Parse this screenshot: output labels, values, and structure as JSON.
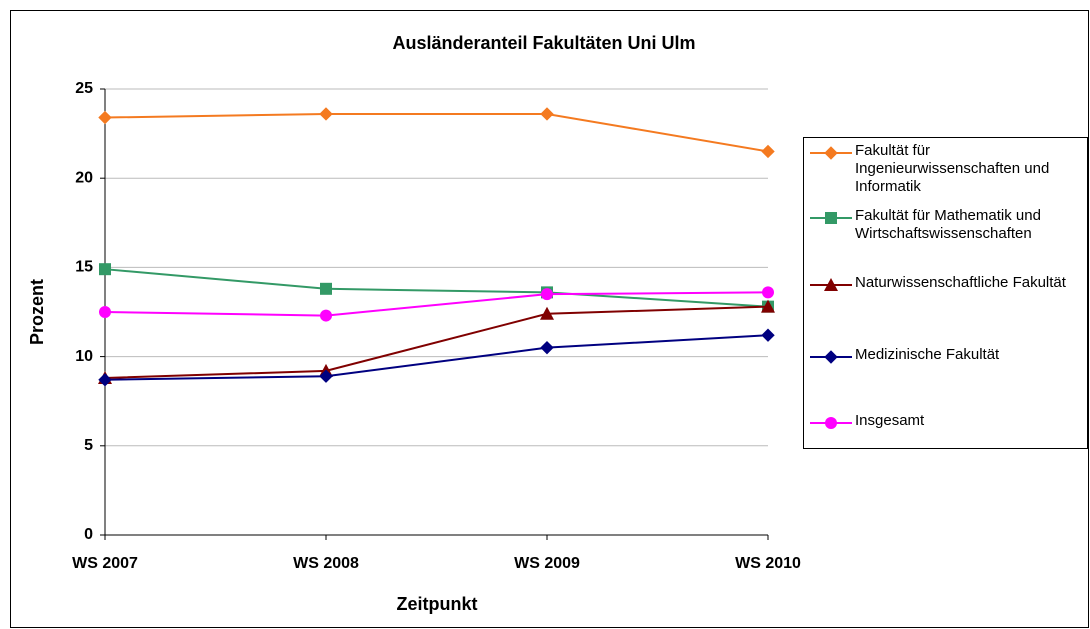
{
  "chart_data": {
    "type": "line",
    "title": "Ausländeranteil Fakultäten Uni Ulm",
    "x_label": "Zeitpunkt",
    "y_label": "Prozent",
    "categories": [
      "WS 2007",
      "WS 2008",
      "WS 2009",
      "WS 2010"
    ],
    "ylim": [
      0,
      25
    ],
    "yticks": [
      0,
      5,
      10,
      15,
      20,
      25
    ],
    "grid": true,
    "legend": "right",
    "series": [
      {
        "name": "Fakultät für Ingenieurwissenschaften und Informatik",
        "color": "#f47a20",
        "marker": "diamond",
        "values": [
          23.4,
          23.6,
          23.6,
          21.5
        ]
      },
      {
        "name": "Fakultät für Mathematik und Wirtschaftswissenschaften",
        "color": "#339966",
        "marker": "square",
        "values": [
          14.9,
          13.8,
          13.6,
          12.8
        ]
      },
      {
        "name": "Naturwissenschaftliche Fakultät",
        "color": "#800000",
        "marker": "triangle",
        "values": [
          8.8,
          9.2,
          12.4,
          12.8
        ]
      },
      {
        "name": "Medizinische Fakultät",
        "color": "#000080",
        "marker": "diamond",
        "values": [
          8.7,
          8.9,
          10.5,
          11.2
        ]
      },
      {
        "name": "Insgesamt",
        "color": "#ff00ff",
        "marker": "circle",
        "values": [
          12.5,
          12.3,
          13.5,
          13.6
        ]
      }
    ]
  }
}
